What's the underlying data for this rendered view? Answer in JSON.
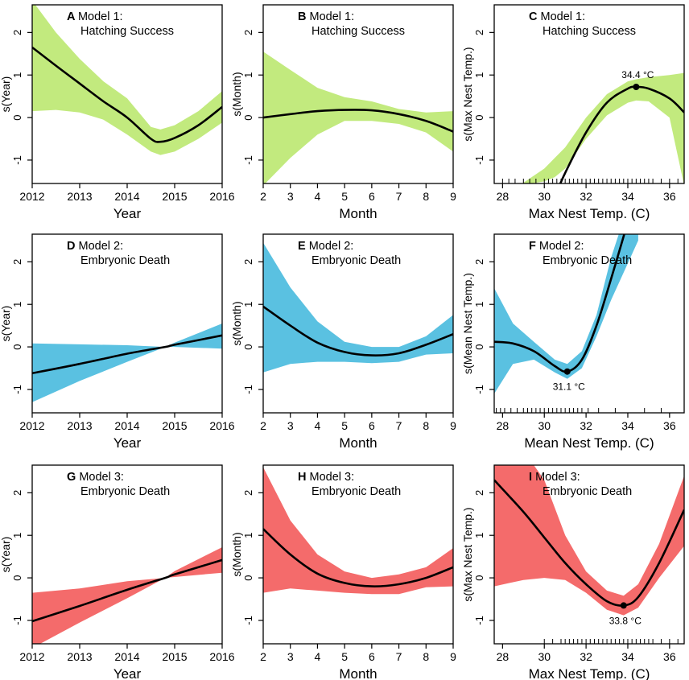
{
  "figure": {
    "colors": {
      "green": "#c2ea7e",
      "blue": "#5ac1e1",
      "red": "#f46b6b",
      "line": "#000000"
    },
    "x_axes": {
      "year": {
        "label": "Year",
        "ticks": [
          2012,
          2013,
          2014,
          2015,
          2016
        ],
        "lim": [
          2012,
          2016
        ]
      },
      "month": {
        "label": "Month",
        "ticks": [
          2,
          3,
          4,
          5,
          6,
          7,
          8,
          9
        ],
        "lim": [
          2,
          9
        ]
      },
      "maxtemp": {
        "label": "Max Nest Temp. (C)",
        "ticks": [
          28,
          30,
          32,
          34,
          36
        ],
        "lim": [
          27.6,
          36.7
        ]
      },
      "meantemp": {
        "label": "Mean Nest Temp. (C)",
        "ticks": [
          28,
          30,
          32,
          34,
          36
        ],
        "lim": [
          27.6,
          36.7
        ]
      }
    }
  },
  "chart_data": [
    {
      "id": "A",
      "letter": "A",
      "title_line1": "Model 1:",
      "title_line2": "Hatching Success",
      "type": "line",
      "xaxis": "year",
      "ylabel": "s(Year)",
      "color": "green",
      "yticks": [
        -1,
        0,
        1,
        2
      ],
      "ylim": [
        -1.55,
        2.65
      ],
      "x": [
        2012,
        2012.5,
        2013,
        2013.5,
        2014,
        2014.5,
        2014.7,
        2015,
        2015.5,
        2016
      ],
      "fit": [
        1.65,
        1.22,
        0.8,
        0.38,
        0.0,
        -0.5,
        -0.57,
        -0.48,
        -0.18,
        0.25
      ],
      "lower": [
        0.15,
        0.18,
        0.12,
        -0.05,
        -0.4,
        -0.8,
        -0.88,
        -0.8,
        -0.5,
        -0.12
      ],
      "upper": [
        2.75,
        2.0,
        1.38,
        0.85,
        0.45,
        -0.22,
        -0.28,
        -0.18,
        0.15,
        0.62
      ]
    },
    {
      "id": "B",
      "letter": "B",
      "title_line1": "Model 1:",
      "title_line2": "Hatching Success",
      "type": "line",
      "xaxis": "month",
      "ylabel": "s(Month)",
      "color": "green",
      "yticks": [
        -1,
        0,
        1,
        2
      ],
      "ylim": [
        -1.55,
        2.65
      ],
      "x": [
        2,
        3,
        4,
        5,
        6,
        7,
        8,
        9
      ],
      "fit": [
        0.0,
        0.08,
        0.15,
        0.18,
        0.17,
        0.08,
        -0.08,
        -0.33
      ],
      "lower": [
        -1.6,
        -0.95,
        -0.4,
        -0.08,
        -0.08,
        -0.15,
        -0.35,
        -0.8
      ],
      "upper": [
        1.55,
        1.12,
        0.7,
        0.48,
        0.38,
        0.2,
        0.12,
        0.15
      ]
    },
    {
      "id": "C",
      "letter": "C",
      "title_line1": "Model 1:",
      "title_line2": "Hatching Success",
      "type": "line",
      "xaxis": "maxtemp",
      "ylabel": "s(Max Nest Temp.)",
      "color": "green",
      "yticks": [
        -1,
        0,
        1,
        2
      ],
      "ylim": [
        -1.55,
        2.65
      ],
      "x": [
        28.8,
        30,
        30.5,
        31,
        32,
        33,
        34,
        34.4,
        35,
        36,
        36.7
      ],
      "fit": [
        -3.5,
        -2.3,
        -1.85,
        -1.3,
        -0.35,
        0.35,
        0.68,
        0.72,
        0.68,
        0.45,
        0.12
      ],
      "lower": [
        -1.6,
        -1.5,
        -1.4,
        -1.2,
        -0.5,
        0.05,
        0.35,
        0.4,
        0.38,
        0.0,
        -1.6
      ],
      "upper": [
        -1.6,
        -1.2,
        -0.95,
        -0.7,
        0.0,
        0.55,
        0.85,
        0.9,
        0.95,
        1.0,
        1.05
      ],
      "annotation": {
        "x": 34.4,
        "y": 0.72,
        "label": "34.4 °C",
        "pos": "above"
      },
      "rug": [
        28.0,
        28.3,
        28.6,
        29.0,
        29.3,
        29.6,
        30.0,
        30.2,
        30.4,
        30.6,
        30.8,
        31.0,
        31.2,
        31.4,
        31.6,
        31.8,
        32.0,
        32.2,
        32.4,
        32.6,
        32.8,
        33.0,
        33.2,
        33.4,
        33.6,
        33.8,
        34.0,
        34.2,
        34.4,
        34.6,
        34.8,
        35.0,
        35.2,
        35.6,
        36.0,
        36.4
      ]
    },
    {
      "id": "D",
      "letter": "D",
      "title_line1": "Model 2:",
      "title_line2": "Embryonic Death",
      "type": "line",
      "xaxis": "year",
      "ylabel": "s(Year)",
      "color": "blue",
      "yticks": [
        -1,
        0,
        1,
        2
      ],
      "ylim": [
        -1.55,
        2.65
      ],
      "x": [
        2012,
        2013,
        2014,
        2014.8,
        2015,
        2016
      ],
      "fit": [
        -0.62,
        -0.4,
        -0.16,
        0.0,
        0.05,
        0.27
      ],
      "lower": [
        -1.3,
        -0.8,
        -0.35,
        0.0,
        0.0,
        -0.04
      ],
      "upper": [
        0.08,
        0.06,
        0.04,
        0.0,
        0.1,
        0.55
      ]
    },
    {
      "id": "E",
      "letter": "E",
      "title_line1": "Model 2:",
      "title_line2": "Embryonic Death",
      "type": "line",
      "xaxis": "month",
      "ylabel": "s(Month)",
      "color": "blue",
      "yticks": [
        -1,
        0,
        1,
        2
      ],
      "ylim": [
        -1.55,
        2.65
      ],
      "x": [
        2,
        3,
        4,
        5,
        6,
        7,
        8,
        9
      ],
      "fit": [
        0.95,
        0.5,
        0.1,
        -0.12,
        -0.2,
        -0.15,
        0.05,
        0.3
      ],
      "lower": [
        -0.6,
        -0.4,
        -0.35,
        -0.35,
        -0.38,
        -0.35,
        -0.18,
        -0.15
      ],
      "upper": [
        2.45,
        1.4,
        0.6,
        0.12,
        0.0,
        0.0,
        0.25,
        0.75
      ]
    },
    {
      "id": "F",
      "letter": "F",
      "title_line1": "Model 2:",
      "title_line2": "Embryonic Death",
      "type": "line",
      "xaxis": "meantemp",
      "ylabel": "s(Mean Nest Temp.)",
      "color": "blue",
      "yticks": [
        -1,
        0,
        1,
        2
      ],
      "ylim": [
        -1.55,
        2.65
      ],
      "x": [
        27.6,
        28.5,
        29.5,
        30.5,
        31.1,
        31.8,
        32.5,
        33.2,
        33.8,
        34.5
      ],
      "fit": [
        0.12,
        0.08,
        -0.1,
        -0.45,
        -0.58,
        -0.3,
        0.5,
        1.6,
        2.6,
        3.8
      ],
      "lower": [
        -1.1,
        -0.4,
        -0.3,
        -0.6,
        -0.75,
        -0.5,
        0.25,
        1.1,
        1.75,
        2.5
      ],
      "upper": [
        1.38,
        0.55,
        0.12,
        -0.3,
        -0.4,
        -0.1,
        0.75,
        2.1,
        3.0,
        4.5
      ],
      "annotation": {
        "x": 31.1,
        "y": -0.58,
        "label": "31.1 °C",
        "pos": "below"
      },
      "rug": [
        27.7,
        27.9,
        28.1,
        28.4,
        28.7,
        29.0,
        29.2,
        29.4,
        29.6,
        29.8,
        30.0,
        30.2,
        30.4,
        30.6,
        30.8,
        31.0,
        31.2,
        31.4,
        31.6,
        31.8,
        32.1,
        32.6,
        33.4,
        34.8,
        35.6
      ]
    },
    {
      "id": "G",
      "letter": "G",
      "title_line1": "Model 3:",
      "title_line2": "Embryonic Death",
      "type": "line",
      "xaxis": "year",
      "ylabel": "s(Year)",
      "color": "red",
      "yticks": [
        -1,
        0,
        1,
        2
      ],
      "ylim": [
        -1.55,
        2.65
      ],
      "x": [
        2012,
        2013,
        2014,
        2014.8,
        2015,
        2016
      ],
      "fit": [
        -1.02,
        -0.66,
        -0.28,
        0.0,
        0.08,
        0.42
      ],
      "lower": [
        -1.65,
        -1.05,
        -0.48,
        0.0,
        0.02,
        0.12
      ],
      "upper": [
        -0.35,
        -0.25,
        -0.08,
        0.0,
        0.16,
        0.72
      ]
    },
    {
      "id": "H",
      "letter": "H",
      "title_line1": "Model 3:",
      "title_line2": "Embryonic Death",
      "type": "line",
      "xaxis": "month",
      "ylabel": "s(Month)",
      "color": "red",
      "yticks": [
        -1,
        0,
        1,
        2
      ],
      "ylim": [
        -1.55,
        2.65
      ],
      "x": [
        2,
        3,
        4,
        5,
        6,
        7,
        8,
        9
      ],
      "fit": [
        1.15,
        0.55,
        0.1,
        -0.12,
        -0.2,
        -0.15,
        0.0,
        0.25
      ],
      "lower": [
        -0.35,
        -0.25,
        -0.3,
        -0.35,
        -0.38,
        -0.38,
        -0.22,
        -0.2
      ],
      "upper": [
        2.6,
        1.35,
        0.55,
        0.15,
        0.0,
        0.08,
        0.25,
        0.7
      ]
    },
    {
      "id": "I",
      "letter": "I",
      "title_line1": "Model 3:",
      "title_line2": "Embryonic Death",
      "type": "line",
      "xaxis": "maxtemp",
      "ylabel": "s(Max Nest Temp.)",
      "color": "red",
      "yticks": [
        -1,
        0,
        1,
        2
      ],
      "ylim": [
        -1.55,
        2.65
      ],
      "x": [
        27.6,
        29,
        30,
        31,
        32,
        33,
        33.8,
        34.5,
        35.5,
        36.7
      ],
      "fit": [
        2.3,
        1.55,
        0.95,
        0.35,
        -0.15,
        -0.55,
        -0.65,
        -0.45,
        0.35,
        1.6
      ],
      "lower": [
        -0.2,
        -0.05,
        0.0,
        -0.05,
        -0.35,
        -0.75,
        -0.88,
        -0.7,
        0.0,
        0.75
      ],
      "upper": [
        3.0,
        3.0,
        2.3,
        1.0,
        0.15,
        -0.3,
        -0.42,
        -0.15,
        0.8,
        2.4
      ],
      "annotation": {
        "x": 33.8,
        "y": -0.65,
        "label": "33.8 °C",
        "pos": "below"
      },
      "rug": [
        30.0,
        30.4,
        30.8,
        31.0,
        31.2,
        31.4,
        31.6,
        31.8,
        32.0,
        32.2,
        32.4,
        32.6,
        32.8,
        33.0,
        33.2,
        33.4,
        33.6,
        33.8,
        34.0,
        34.2,
        34.4,
        34.6,
        34.8,
        35.0,
        35.2,
        35.6,
        36.0,
        36.4
      ]
    }
  ]
}
